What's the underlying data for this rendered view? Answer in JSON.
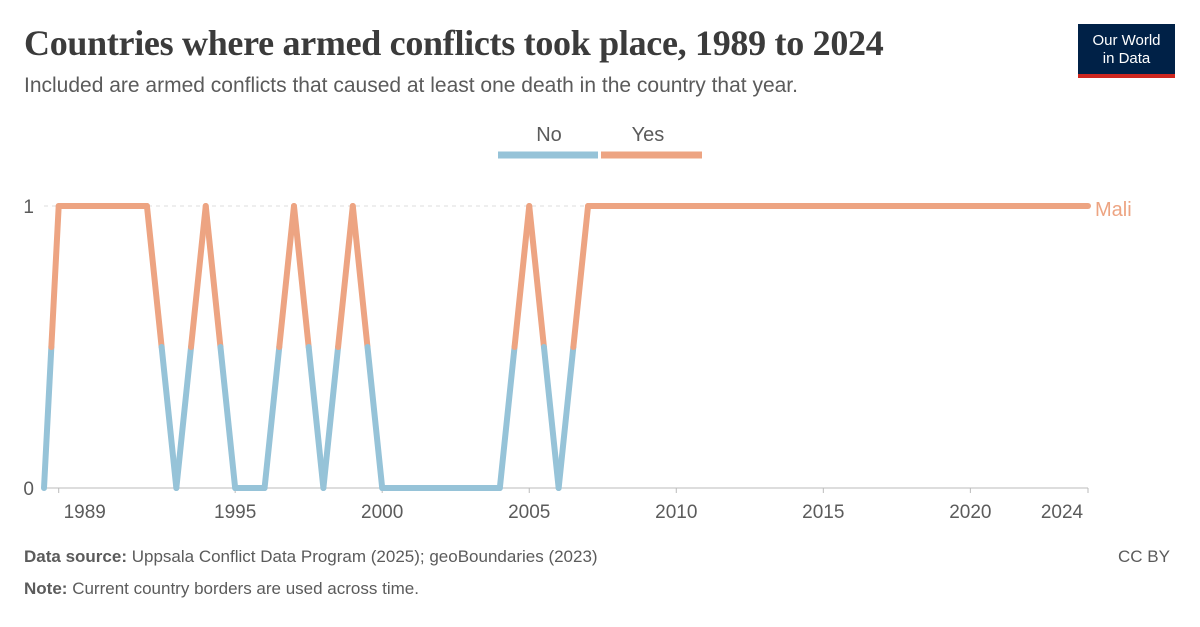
{
  "header": {
    "title": "Countries where armed conflicts took place, 1989 to 2024",
    "subtitle": "Included are armed conflicts that caused at least one death in the country that year.",
    "logo_line1": "Our World",
    "logo_line2": "in Data"
  },
  "footer": {
    "source_label": "Data source:",
    "source_text": "Uppsala Conflict Data Program (2025); geoBoundaries (2023)",
    "note_label": "Note:",
    "note_text": "Current country borders are used across time.",
    "license": "CC BY"
  },
  "colors": {
    "no": "#96c3d8",
    "yes": "#eda482",
    "text": "#5b5b5b",
    "grid": "#dddddd"
  },
  "chart_data": {
    "type": "line",
    "title": "Countries where armed conflicts took place, 1989 to 2024",
    "legend": {
      "position": "top-center",
      "entries": [
        "No",
        "Yes"
      ]
    },
    "x_ticks": [
      1989,
      1995,
      2000,
      2005,
      2010,
      2015,
      2020,
      2024
    ],
    "y_ticks": [
      0,
      1
    ],
    "xlim": [
      1988.5,
      2024
    ],
    "ylim": [
      0,
      1
    ],
    "series": [
      {
        "name": "Mali",
        "x": [
          1988.5,
          1989,
          1990,
          1991,
          1992,
          1993,
          1994,
          1995,
          1996,
          1997,
          1998,
          1999,
          2000,
          2001,
          2002,
          2003,
          2004,
          2005,
          2006,
          2007,
          2008,
          2009,
          2010,
          2011,
          2012,
          2013,
          2014,
          2015,
          2016,
          2017,
          2018,
          2019,
          2020,
          2021,
          2022,
          2023,
          2024
        ],
        "values": [
          0,
          1,
          1,
          1,
          1,
          0,
          1,
          0,
          0,
          1,
          0,
          1,
          0,
          0,
          0,
          0,
          0,
          1,
          0,
          1,
          1,
          1,
          1,
          1,
          1,
          1,
          1,
          1,
          1,
          1,
          1,
          1,
          1,
          1,
          1,
          1,
          1
        ]
      }
    ]
  }
}
